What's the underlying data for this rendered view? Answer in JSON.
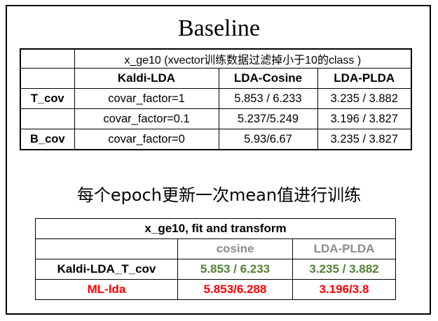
{
  "title": "Baseline",
  "subtitle": "每个epoch更新一次mean值进行训练",
  "table1": {
    "caption": "x_ge10 (xvector训练数据过滤掉小于10的class )",
    "headers": [
      "Kaldi-LDA",
      "LDA-Cosine",
      "LDA-PLDA"
    ],
    "rows": [
      {
        "label": "T_cov",
        "config": "covar_factor=1",
        "cosine": "5.853 / 6.233",
        "plda": "3.235 / 3.882"
      },
      {
        "label": "",
        "config": "covar_factor=0.1",
        "cosine": "5.237/5.249",
        "plda": "3.196 / 3.827"
      },
      {
        "label": "B_cov",
        "config": "covar_factor=0",
        "cosine": "5.93/6.67",
        "plda": "3.235 / 3.827"
      }
    ]
  },
  "table2": {
    "caption": "x_ge10, fit and transform",
    "headers": [
      "cosine",
      "LDA-PLDA"
    ],
    "rows": [
      {
        "label": "Kaldi-LDA_T_cov",
        "cosine": "5.853 / 6.233",
        "plda": "3.235 / 3.882",
        "label_color": "#000000",
        "value_color": "#538135"
      },
      {
        "label": "ML-lda",
        "cosine": "5.853/6.288",
        "plda": "3.196/3.8",
        "label_color": "#ff0000",
        "value_color": "#ff0000"
      }
    ]
  }
}
